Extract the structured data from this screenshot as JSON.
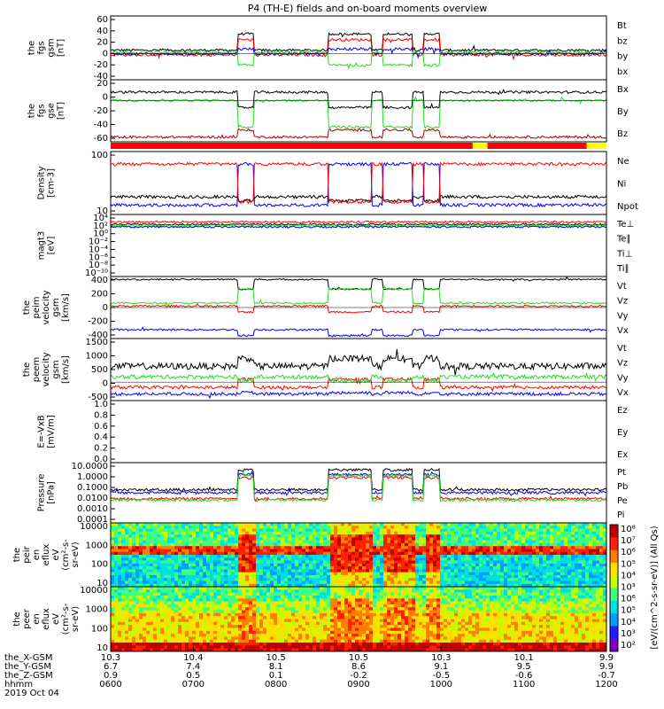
{
  "title": "P4 (TH-E) fields and on-board moments overview",
  "date_label": "2019 Oct 04",
  "colors": {
    "black": "#000000",
    "red": "#ff0000",
    "green": "#22dd22",
    "blue": "#0000ff",
    "darkred": "#aa0000",
    "yellow": "#ffff00"
  },
  "chart_data": [
    {
      "id": "fgs",
      "type": "line",
      "ylabel": [
        "the",
        "fgs",
        "gsm",
        "[nT]"
      ],
      "yticks": [
        "60",
        "40",
        "20",
        "0",
        "-20",
        "-40"
      ],
      "ylim": [
        -45,
        65
      ],
      "legend": [
        {
          "name": "Bt",
          "color": "black"
        },
        {
          "name": "bz",
          "color": "red"
        },
        {
          "name": "by",
          "color": "green"
        },
        {
          "name": "bx",
          "color": "blue"
        }
      ]
    },
    {
      "id": "fgs_gse",
      "type": "line",
      "ylabel": [
        "the",
        "fgs",
        "gse",
        "[nT]"
      ],
      "yticks": [
        "20",
        "0",
        "-20",
        "-40",
        "-60"
      ],
      "ylim": [
        -70,
        35
      ],
      "legend": [
        {
          "name": "Bx",
          "color": "black"
        },
        {
          "name": "By",
          "color": "green"
        },
        {
          "name": "Bz",
          "color": "darkred"
        }
      ]
    },
    {
      "id": "density",
      "type": "line",
      "ylabel": [
        "Density",
        "[cm-3]"
      ],
      "yticks": [
        "100",
        "10"
      ],
      "scale": "log",
      "legend": [
        {
          "name": "Ne",
          "color": "red"
        },
        {
          "name": "Ni",
          "color": "black"
        },
        {
          "name": "Npot",
          "color": "blue"
        }
      ]
    },
    {
      "id": "temp",
      "type": "line",
      "ylabel": [
        "magt3",
        "[eV]"
      ],
      "yticks": [
        "10⁴",
        "10²",
        "10⁰",
        "10⁻²",
        "10⁻⁴",
        "10⁻⁶",
        "10⁻⁸",
        "10⁻¹⁰"
      ],
      "scale": "log",
      "legend": [
        {
          "name": "Te⊥",
          "color": "red"
        },
        {
          "name": "Te∥",
          "color": "black"
        },
        {
          "name": "Ti⊥",
          "color": "blue"
        },
        {
          "name": "Ti∥",
          "color": "green"
        }
      ]
    },
    {
      "id": "peim",
      "type": "line",
      "ylabel": [
        "the",
        "peim",
        "velocity",
        "gsm",
        "[km/s]"
      ],
      "yticks": [
        "400",
        "200",
        "0",
        "-200",
        "-400"
      ],
      "ylim": [
        -420,
        420
      ],
      "legend": [
        {
          "name": "Vt",
          "color": "black"
        },
        {
          "name": "Vz",
          "color": "red"
        },
        {
          "name": "Vy",
          "color": "green"
        },
        {
          "name": "Vx",
          "color": "blue"
        }
      ]
    },
    {
      "id": "peem",
      "type": "line",
      "ylabel": [
        "the",
        "peem",
        "velocity",
        "gsm",
        "[km/s]"
      ],
      "yticks": [
        "1500",
        "1000",
        "500",
        "0",
        "-500"
      ],
      "ylim": [
        -700,
        1650
      ],
      "legend": [
        {
          "name": "Vt",
          "color": "black"
        },
        {
          "name": "Vz",
          "color": "red"
        },
        {
          "name": "Vy",
          "color": "green"
        },
        {
          "name": "Vx",
          "color": "blue"
        }
      ]
    },
    {
      "id": "efield",
      "type": "line",
      "ylabel": [
        "E=-VxB",
        "[mV/m]"
      ],
      "yticks": [
        "1.0",
        "0.8",
        "0.6",
        "0.4",
        "0.2",
        "0.0"
      ],
      "ylim": [
        0,
        1
      ],
      "legend": [
        {
          "name": "Ez",
          "color": "red"
        },
        {
          "name": "Ey",
          "color": "green"
        },
        {
          "name": "Ex",
          "color": "blue"
        }
      ]
    },
    {
      "id": "pressure",
      "type": "line",
      "ylabel": [
        "Pressure",
        "[nPa]"
      ],
      "yticks": [
        "10.0000",
        "1.0000",
        "0.1000",
        "0.0100",
        "0.0010",
        "0.0001"
      ],
      "scale": "log",
      "legend": [
        {
          "name": "Pt",
          "color": "black"
        },
        {
          "name": "Pb",
          "color": "red"
        },
        {
          "name": "Pe",
          "color": "green"
        },
        {
          "name": "Pi",
          "color": "blue"
        }
      ]
    },
    {
      "id": "peir_spec",
      "type": "heatmap",
      "ylabel": [
        "the",
        "peir",
        "en",
        "eflux",
        "eV",
        "(cm²-s-",
        "sr-eV)"
      ],
      "yticks": [
        "10000",
        "1000",
        "100",
        "10"
      ],
      "scale": "log"
    },
    {
      "id": "peer_spec",
      "type": "heatmap",
      "ylabel": [
        "the",
        "peer",
        "en",
        "eflux",
        "eV",
        "(cm²-s-",
        "sr-eV)"
      ],
      "yticks": [
        "10000",
        "1000",
        "100",
        "10"
      ],
      "scale": "log"
    }
  ],
  "colorbar": {
    "label": "[eV/(cm^2-s-sr-eV)] (All Qs)",
    "ticks": [
      "10⁸",
      "10⁷",
      "10⁶",
      "10⁵",
      "10⁴",
      "10³",
      "10⁶",
      "10⁵",
      "10⁴",
      "10³",
      "10²"
    ]
  },
  "xaxis": {
    "rows": [
      {
        "label": "the_X-GSM",
        "values": [
          "10.3",
          "10.4",
          "10.5",
          "10.5",
          "10.3",
          "10.1",
          "9.9"
        ]
      },
      {
        "label": "the_Y-GSM",
        "values": [
          "6.7",
          "7.4",
          "8.1",
          "8.6",
          "9.1",
          "9.5",
          "9.9"
        ]
      },
      {
        "label": "the_Z-GSM",
        "values": [
          "0.9",
          "0.5",
          "0.1",
          "-0.2",
          "-0.5",
          "-0.6",
          "-0.7"
        ]
      },
      {
        "label": "hhmm",
        "values": [
          "0600",
          "0700",
          "0800",
          "0900",
          "1000",
          "1100",
          "1200"
        ]
      }
    ]
  },
  "events": [
    [
      0.256,
      0.289
    ],
    [
      0.439,
      0.527
    ],
    [
      0.548,
      0.608
    ],
    [
      0.631,
      0.663
    ]
  ]
}
